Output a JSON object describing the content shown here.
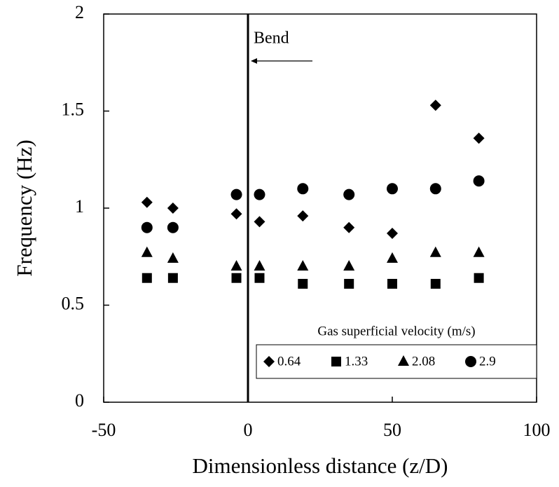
{
  "chart_data": {
    "type": "scatter",
    "x_label": "Dimensionless distance (z/D)",
    "y_label": "Frequency (Hz)",
    "xlim": [
      -50,
      100
    ],
    "xticks": [
      -50,
      0,
      50,
      100
    ],
    "ylim": [
      0,
      2
    ],
    "yticks": [
      0,
      0.5,
      1,
      1.5,
      2
    ],
    "annotation": {
      "text": "Bend",
      "x": 0
    },
    "legend_title": "Gas superficial velocity (m/s)",
    "legend": "lower right",
    "x": [
      -35,
      -26,
      -4,
      4,
      19,
      35,
      50,
      65,
      80
    ],
    "series": [
      {
        "name": "0.64",
        "marker": "diamond",
        "color": "#000000",
        "values": [
          1.03,
          1.0,
          0.97,
          0.93,
          0.96,
          0.9,
          0.87,
          1.53,
          1.36
        ]
      },
      {
        "name": "1.33",
        "marker": "square",
        "color": "#000000",
        "values": [
          0.64,
          0.64,
          0.64,
          0.64,
          0.61,
          0.61,
          0.61,
          0.61,
          0.64
        ]
      },
      {
        "name": "2.08",
        "marker": "triangle",
        "color": "#000000",
        "values": [
          0.77,
          0.74,
          0.7,
          0.7,
          0.7,
          0.7,
          0.74,
          0.77,
          0.77
        ]
      },
      {
        "name": "2.9",
        "marker": "circle",
        "color": "#000000",
        "values": [
          0.9,
          0.9,
          1.07,
          1.07,
          1.1,
          1.07,
          1.1,
          1.1,
          1.14
        ]
      }
    ]
  }
}
